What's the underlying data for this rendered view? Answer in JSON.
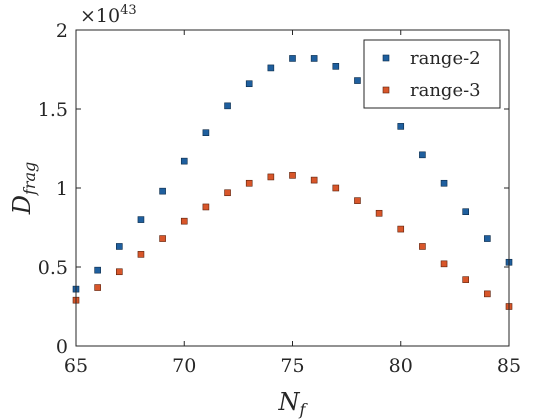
{
  "chart_data": {
    "type": "scatter",
    "title": "",
    "xlabel": "N",
    "xlabel_sub": "f",
    "ylabel": "D",
    "ylabel_sub": "frag",
    "y_exponent_prefix": "×10",
    "y_exponent_power": "43",
    "xlim": [
      65,
      85
    ],
    "ylim": [
      0,
      2
    ],
    "x_ticks": [
      65,
      70,
      75,
      80,
      85
    ],
    "x_tick_labels": [
      "65",
      "70",
      "75",
      "80",
      "85"
    ],
    "y_ticks": [
      0,
      0.5,
      1,
      1.5,
      2
    ],
    "y_tick_labels": [
      "0",
      "0.5",
      "1",
      "1.5",
      "2"
    ],
    "y_scale": "1e43",
    "grid": false,
    "legend_position": "top-right",
    "x": [
      65,
      66,
      67,
      68,
      69,
      70,
      71,
      72,
      73,
      74,
      75,
      76,
      77,
      78,
      79,
      80,
      81,
      82,
      83,
      84,
      85
    ],
    "series": [
      {
        "name": "range-2",
        "color": "#1f5f9e",
        "values": [
          0.36,
          0.48,
          0.63,
          0.8,
          0.98,
          1.17,
          1.35,
          1.52,
          1.66,
          1.76,
          1.82,
          1.82,
          1.77,
          1.68,
          1.56,
          1.39,
          1.21,
          1.03,
          0.85,
          0.68,
          0.53
        ]
      },
      {
        "name": "range-3",
        "color": "#d8562a",
        "values": [
          0.29,
          0.37,
          0.47,
          0.58,
          0.68,
          0.79,
          0.88,
          0.97,
          1.03,
          1.07,
          1.08,
          1.05,
          1.0,
          0.92,
          0.84,
          0.74,
          0.63,
          0.52,
          0.42,
          0.33,
          0.25
        ]
      }
    ]
  }
}
